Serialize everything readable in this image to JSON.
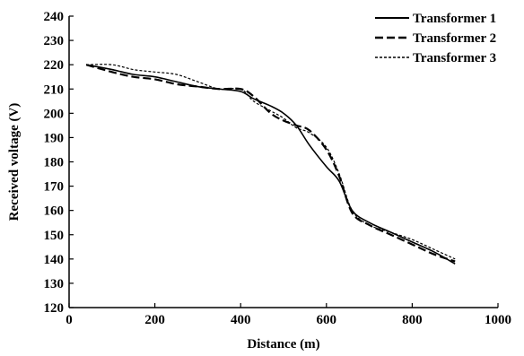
{
  "chart_data": {
    "type": "line",
    "xlabel": "Distance (m)",
    "ylabel": "Received voltage (V)",
    "xlim": [
      0,
      1000
    ],
    "ylim": [
      120,
      240
    ],
    "xticks": [
      0,
      200,
      400,
      600,
      800,
      1000
    ],
    "yticks": [
      120,
      130,
      140,
      150,
      160,
      170,
      180,
      190,
      200,
      210,
      220,
      230,
      240
    ],
    "grid": false,
    "legend_position": "top-right",
    "series": [
      {
        "name": "Transformer 1",
        "style": "solid",
        "color": "#000000",
        "x": [
          40,
          100,
          150,
          200,
          250,
          300,
          350,
          400,
          430,
          470,
          500,
          530,
          560,
          600,
          630,
          660,
          700,
          750,
          800,
          850,
          900
        ],
        "y": [
          220,
          218,
          216,
          215,
          213,
          211,
          210,
          209,
          206,
          203,
          200,
          195,
          187,
          178,
          172,
          160,
          155,
          151,
          147,
          143,
          138
        ]
      },
      {
        "name": "Transformer 2",
        "style": "long-dash",
        "color": "#000000",
        "x": [
          40,
          100,
          150,
          200,
          250,
          300,
          350,
          400,
          430,
          470,
          500,
          530,
          560,
          600,
          630,
          660,
          700,
          750,
          800,
          850,
          900
        ],
        "y": [
          220,
          217,
          215,
          214,
          212,
          211,
          210,
          210,
          207,
          200,
          197,
          195,
          193,
          185,
          174,
          159,
          154,
          150,
          146,
          142,
          139
        ]
      },
      {
        "name": "Transformer 3",
        "style": "short-dash",
        "color": "#000000",
        "x": [
          40,
          100,
          150,
          200,
          250,
          300,
          350,
          400,
          430,
          470,
          500,
          530,
          560,
          600,
          630,
          660,
          700,
          750,
          800,
          850,
          900
        ],
        "y": [
          220,
          220,
          218,
          217,
          216,
          213,
          210,
          210,
          205,
          201,
          198,
          194,
          192,
          186,
          175,
          160,
          154,
          151,
          148,
          144,
          140
        ]
      }
    ]
  }
}
